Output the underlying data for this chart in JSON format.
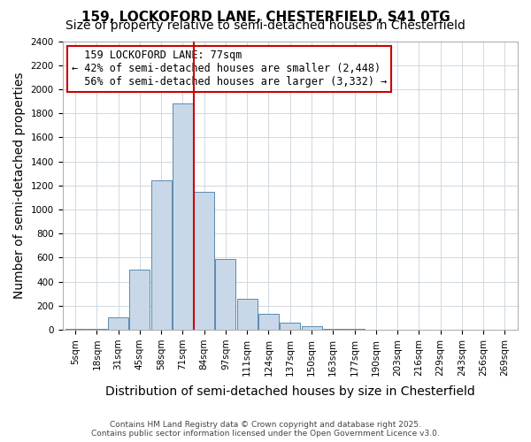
{
  "title1": "159, LOCKOFORD LANE, CHESTERFIELD, S41 0TG",
  "title2": "Size of property relative to semi-detached houses in Chesterfield",
  "xlabel": "Distribution of semi-detached houses by size in Chesterfield",
  "ylabel": "Number of semi-detached properties",
  "footnote": "Contains HM Land Registry data © Crown copyright and database right 2025.\nContains public sector information licensed under the Open Government Licence v3.0.",
  "property_size": 77,
  "property_label": "159 LOCKOFORD LANE: 77sqm",
  "pct_smaller": 42,
  "pct_larger": 56,
  "n_smaller": 2448,
  "n_larger": 3332,
  "bar_color": "#c8d8e8",
  "bar_edge_color": "#5a8ab0",
  "line_color": "#cc0000",
  "annotation_box_color": "#cc0000",
  "categories": [
    "5sqm",
    "18sqm",
    "31sqm",
    "45sqm",
    "58sqm",
    "71sqm",
    "84sqm",
    "97sqm",
    "111sqm",
    "124sqm",
    "137sqm",
    "150sqm",
    "163sqm",
    "177sqm",
    "190sqm",
    "203sqm",
    "216sqm",
    "229sqm",
    "243sqm",
    "256sqm",
    "269sqm"
  ],
  "values": [
    5,
    10,
    100,
    500,
    1240,
    1880,
    1150,
    590,
    260,
    130,
    60,
    30,
    10,
    5,
    3,
    2,
    1,
    1,
    0,
    0,
    0
  ],
  "ylim": [
    0,
    2400
  ],
  "yticks": [
    0,
    200,
    400,
    600,
    800,
    1000,
    1200,
    1400,
    1600,
    1800,
    2000,
    2200,
    2400
  ],
  "title_fontsize": 11,
  "subtitle_fontsize": 10,
  "axis_label_fontsize": 10,
  "tick_fontsize": 7.5,
  "annotation_fontsize": 8.5,
  "background_color": "#ffffff",
  "grid_color": "#d0d8e0"
}
